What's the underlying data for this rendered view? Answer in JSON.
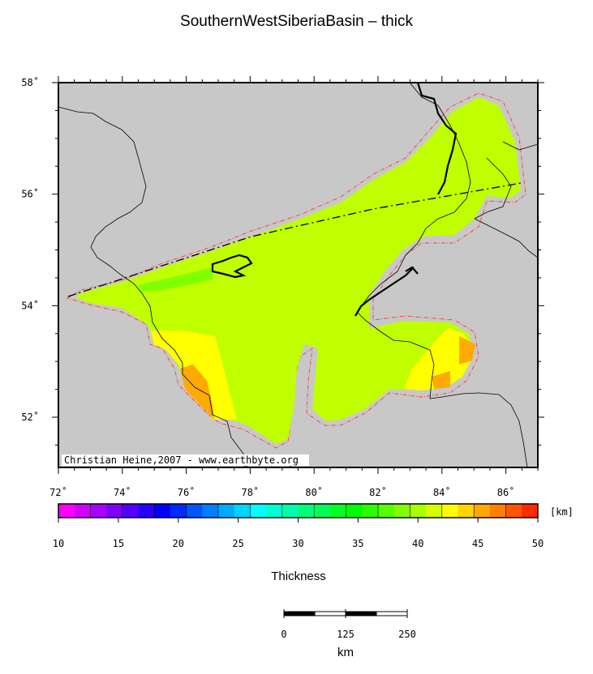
{
  "title": "SouthernWestSiberiaBasin – thick",
  "credit": "Christian Heine,2007 - www.earthbyte.org",
  "map": {
    "lon_range": [
      72,
      87
    ],
    "lat_range": [
      51,
      58
    ],
    "lon_ticks": [
      "72˚",
      "74˚",
      "76˚",
      "78˚",
      "80˚",
      "82˚",
      "84˚",
      "86˚"
    ],
    "lat_ticks": [
      "52˚",
      "54˚",
      "56˚",
      "58˚"
    ],
    "land_color": "#c8c8c8"
  },
  "colorbar": {
    "label": "Thickness",
    "unit": "[km]",
    "ticks": [
      "10",
      "15",
      "20",
      "25",
      "30",
      "35",
      "40",
      "45",
      "50"
    ],
    "colors": [
      "#ff00ff",
      "#d400ff",
      "#aa00ff",
      "#8000ff",
      "#5500ff",
      "#2a00ff",
      "#0000ff",
      "#002aff",
      "#0055ff",
      "#0080ff",
      "#00aaff",
      "#00d4ff",
      "#00ffff",
      "#00ffd4",
      "#00ffaa",
      "#00ff80",
      "#00ff55",
      "#00ff2a",
      "#00ff00",
      "#2aff00",
      "#55ff00",
      "#80ff00",
      "#aaff00",
      "#d4ff00",
      "#ffff00",
      "#ffd400",
      "#ffaa00",
      "#ff8000",
      "#ff5500",
      "#ff2a00"
    ]
  },
  "scalebar": {
    "ticks": [
      "0",
      "125",
      "250"
    ],
    "unit": "km"
  },
  "fill_colors": {
    "main": "#bfff00",
    "mid": "#aaff00",
    "green": "#80ff00",
    "yellow": "#ffff00",
    "orange": "#ffaa00",
    "boundary": "#ff4040"
  }
}
